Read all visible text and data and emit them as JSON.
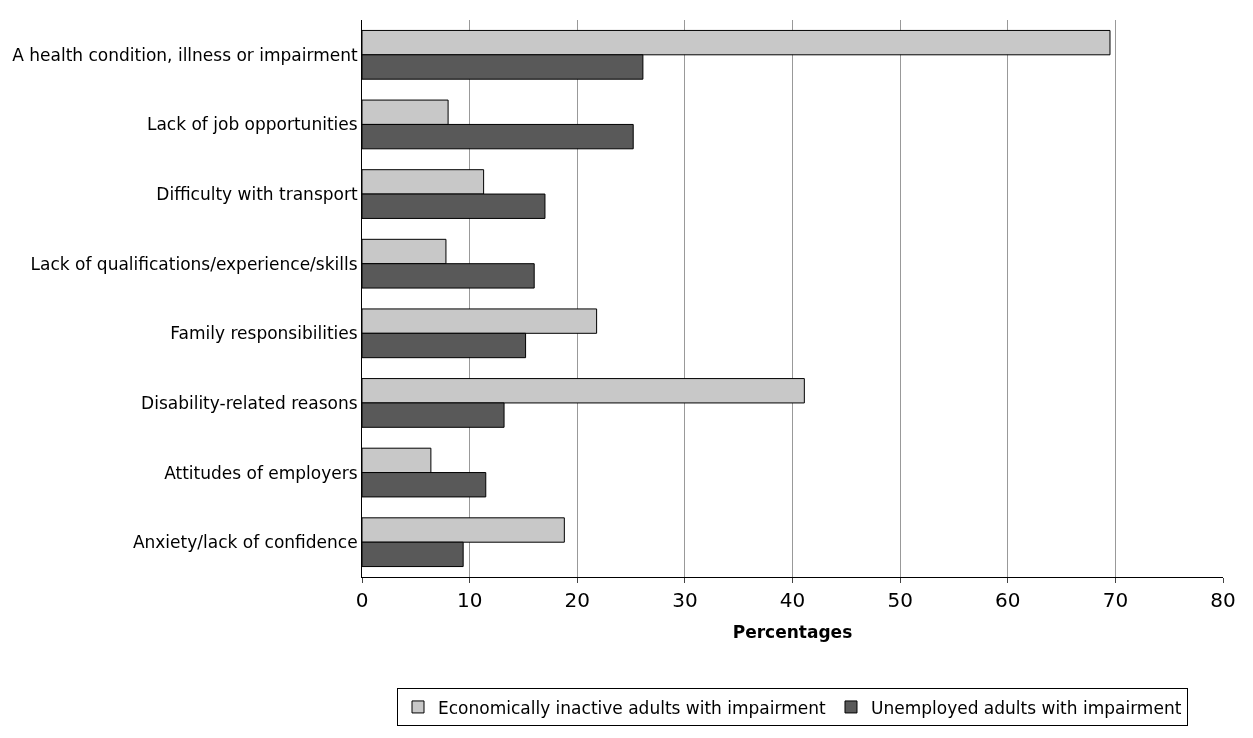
{
  "chart_data": {
    "type": "bar",
    "orientation": "horizontal",
    "xlabel": "Percentages",
    "categories": [
      "A health condition, illness or impairment",
      "Lack of job opportunities",
      "Difficulty with transport",
      "Lack of qualifications/experience/skills",
      "Family responsibilities",
      "Disability-related reasons",
      "Attitudes of employers",
      "Anxiety/lack of confidence"
    ],
    "series": [
      {
        "name": "Economically inactive adults with impairment",
        "color": "#c8c8c8",
        "values": [
          69.5,
          8.0,
          11.3,
          7.8,
          21.8,
          41.1,
          6.4,
          18.8
        ]
      },
      {
        "name": "Unemployed adults with impairment",
        "color": "#595959",
        "values": [
          26.1,
          25.2,
          17.0,
          16.0,
          15.2,
          13.2,
          11.5,
          9.4
        ]
      }
    ],
    "xlim": [
      0,
      80
    ],
    "xticks": [
      0,
      10,
      20,
      30,
      40,
      50,
      60,
      70,
      80
    ],
    "grid": "x",
    "legend": "bottom"
  }
}
